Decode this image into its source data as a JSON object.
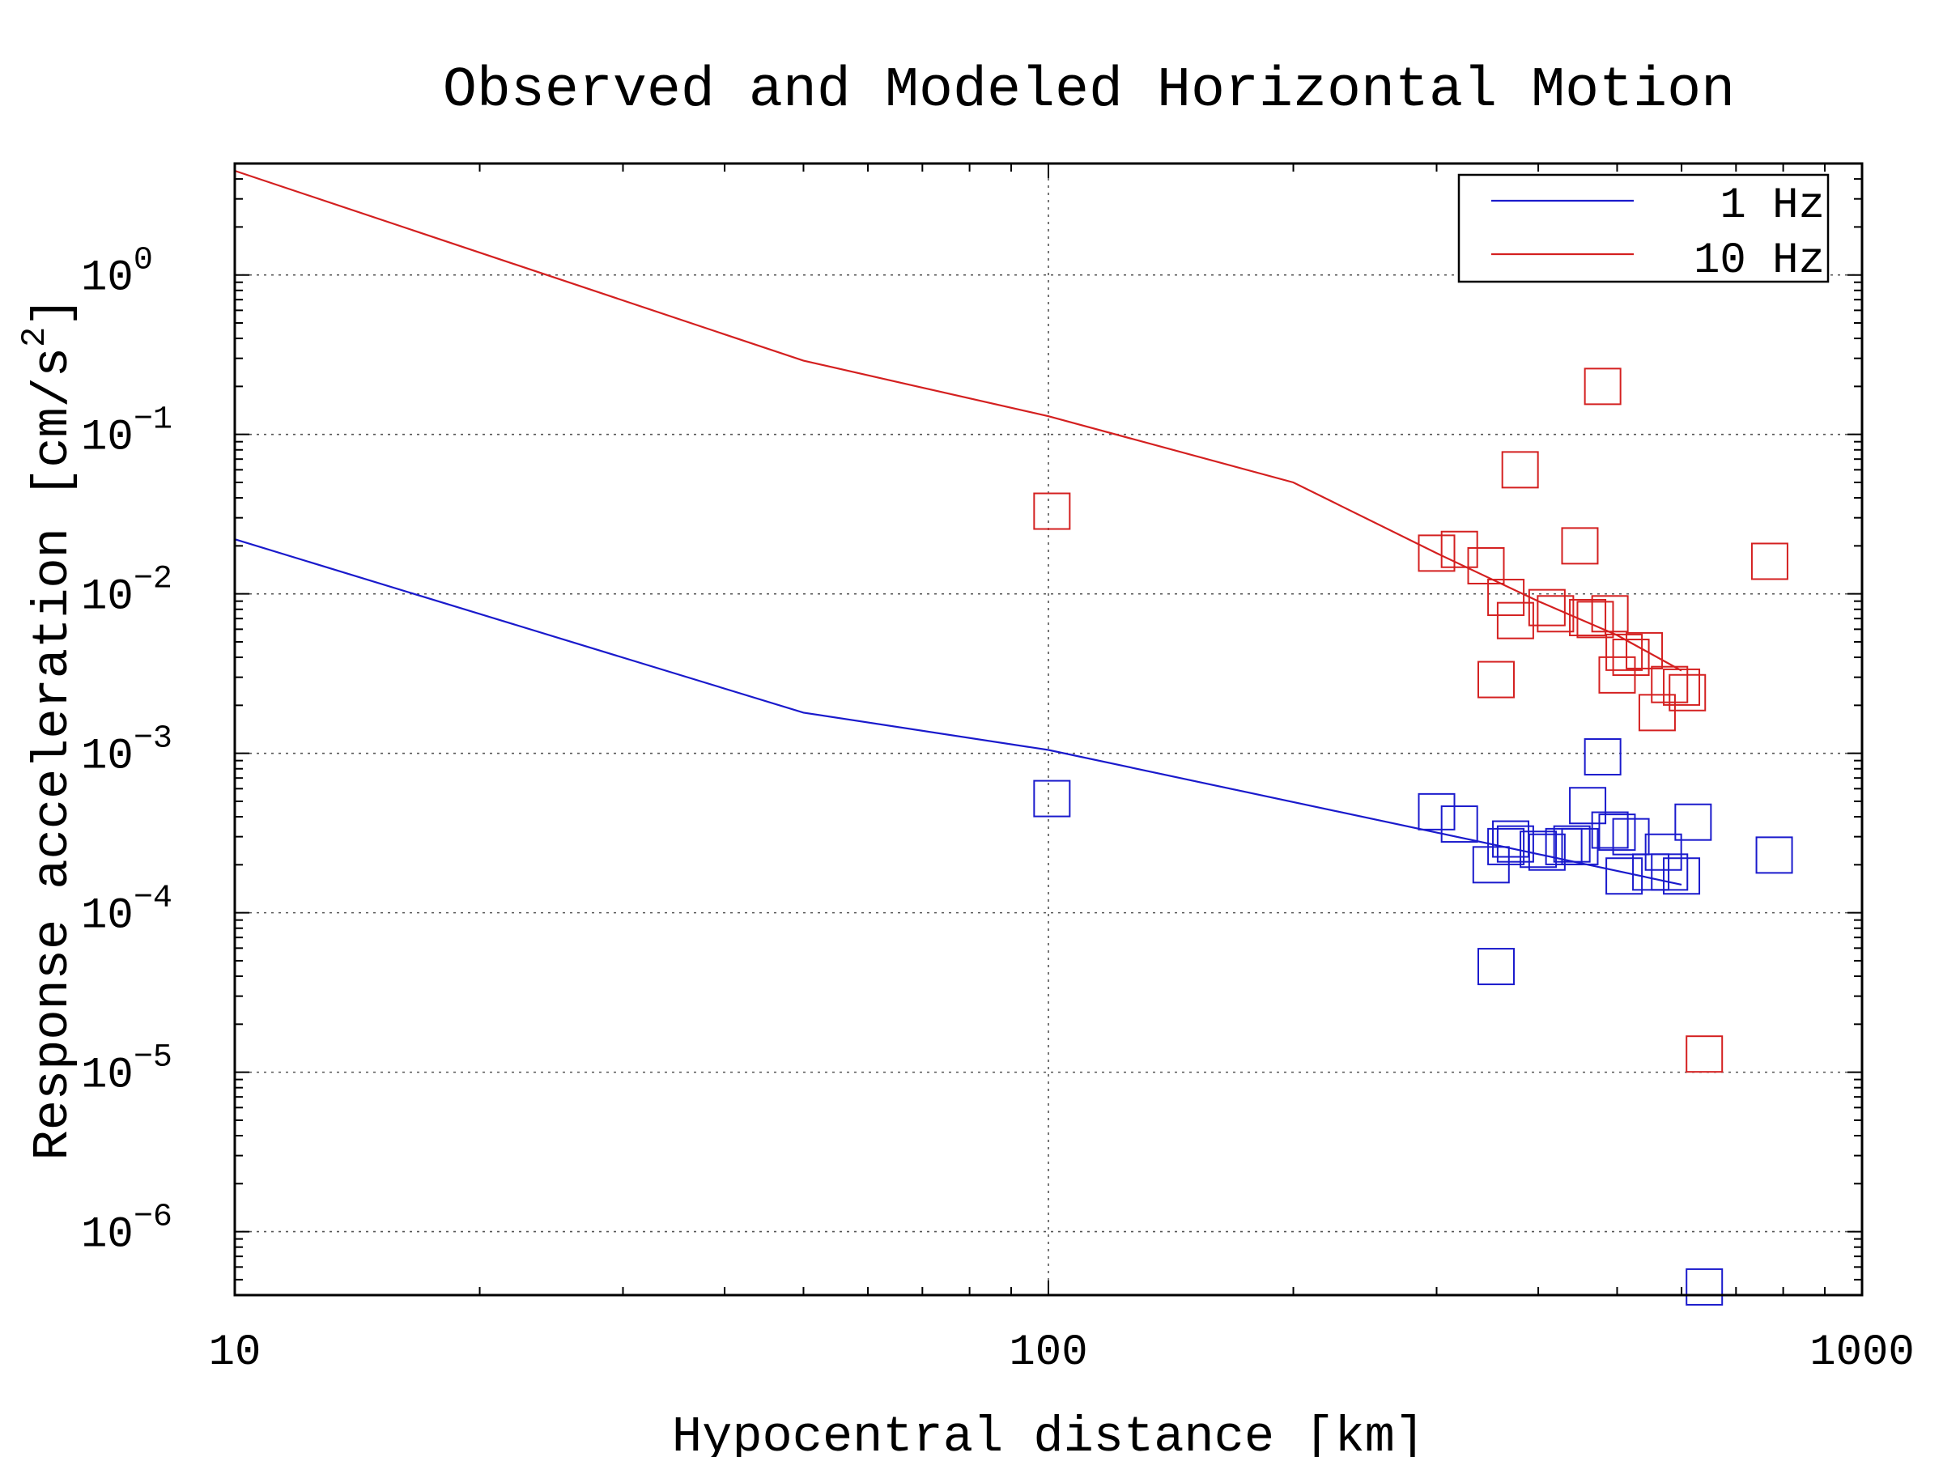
{
  "chart_data": {
    "type": "scatter",
    "title": "Observed and Modeled Horizontal Motion",
    "xlabel": "Hypocentral distance [km]",
    "ylabel": {
      "base": "Response acceleration [cm/s",
      "sup": "2",
      "end": "]"
    },
    "xscale": "log",
    "yscale": "log",
    "xlim": [
      10,
      1000
    ],
    "ylim": [
      4e-07,
      5
    ],
    "x_ticks": [
      {
        "value": 10,
        "label": "10"
      },
      {
        "value": 100,
        "label": "100"
      },
      {
        "value": 1000,
        "label": "1000"
      }
    ],
    "y_ticks": [
      {
        "value": 1,
        "base": "10",
        "exp": "0"
      },
      {
        "value": 0.1,
        "base": "10",
        "exp": "−1"
      },
      {
        "value": 0.01,
        "base": "10",
        "exp": "−2"
      },
      {
        "value": 0.001,
        "base": "10",
        "exp": "−3"
      },
      {
        "value": 0.0001,
        "base": "10",
        "exp": "−4"
      },
      {
        "value": 1e-05,
        "base": "10",
        "exp": "−5"
      },
      {
        "value": 1e-06,
        "base": "10",
        "exp": "−6"
      }
    ],
    "grid": true,
    "legend": {
      "position": "top-right"
    },
    "series": [
      {
        "name": "1 Hz",
        "color": "#1a1acc",
        "model": {
          "x": [
            10,
            50,
            100,
            600
          ],
          "y": [
            0.022,
            0.0018,
            0.00105,
            0.00015
          ]
        },
        "observed": {
          "x": [
            101,
            300,
            320,
            350,
            355,
            365,
            370,
            375,
            400,
            410,
            430,
            440,
            450,
            460,
            480,
            490,
            500,
            510,
            520,
            550,
            570,
            580,
            600,
            620,
            640,
            780
          ],
          "y": [
            0.00052,
            0.00043,
            0.00036,
            0.0002,
            4.6e-05,
            0.00026,
            0.00029,
            0.00027,
            0.00025,
            0.00024,
            0.00026,
            0.00027,
            0.00026,
            0.00047,
            0.00095,
            0.00033,
            0.00032,
            0.00017,
            0.0003,
            0.00018,
            0.00024,
            0.00018,
            0.00017,
            0.00037,
            4.5e-07,
            0.00023
          ]
        }
      },
      {
        "name": "10 Hz",
        "color": "#d42020",
        "model": {
          "x": [
            10,
            50,
            100,
            200,
            300,
            400,
            500,
            600
          ],
          "y": [
            4.5,
            0.29,
            0.13,
            0.05,
            0.018,
            0.009,
            0.0055,
            0.0033
          ]
        },
        "observed": {
          "x": [
            101,
            300,
            320,
            345,
            355,
            365,
            375,
            380,
            410,
            420,
            450,
            460,
            470,
            480,
            490,
            500,
            510,
            520,
            540,
            560,
            580,
            600,
            610,
            640,
            770
          ],
          "y": [
            0.033,
            0.018,
            0.019,
            0.015,
            0.0029,
            0.0095,
            0.0068,
            0.06,
            0.0082,
            0.0075,
            0.02,
            0.0071,
            0.0069,
            0.2,
            0.0075,
            0.0031,
            0.0043,
            0.004,
            0.0044,
            0.0018,
            0.0027,
            0.0026,
            0.0024,
            1.3e-05,
            0.016
          ]
        }
      }
    ]
  }
}
